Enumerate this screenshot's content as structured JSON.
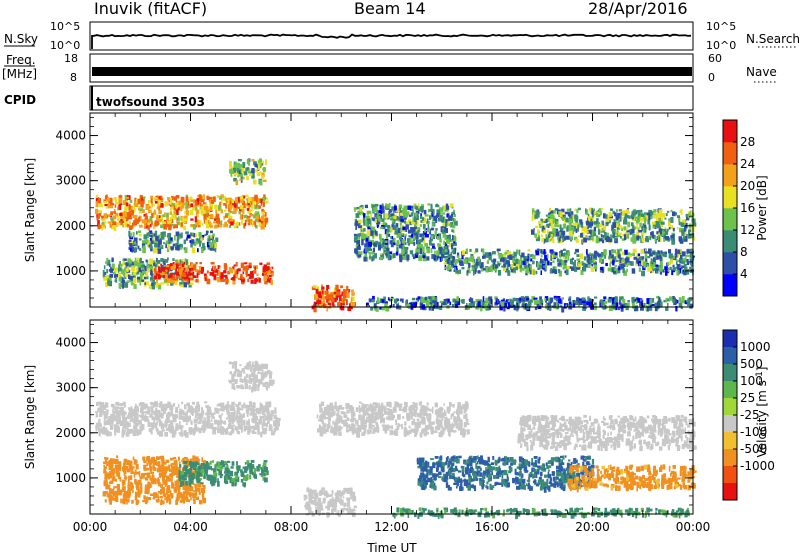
{
  "header": {
    "station": "Inuvik (fitACF)",
    "beam": "Beam 14",
    "date": "28/Apr/2016"
  },
  "strips": {
    "nsky_label": "N.Sky",
    "nsky_top": "10^5",
    "nsky_bottom": "10^0",
    "nsearch_label": "N.Search",
    "nsearch_top": "10^5",
    "nsearch_bottom": "10^0",
    "freq_label": "Freq.",
    "freq_unit": "[MHz]",
    "freq_top": "18",
    "freq_bottom": "8",
    "nave_label": "Nave",
    "nave_top": "60",
    "nave_bottom": "0",
    "cpid_label": "CPID",
    "cpid_value": "twofsound 3503"
  },
  "panels": {
    "power": {
      "ylabel": "Slant Range [km]",
      "cbar_label": "Power [dB]",
      "cbar_ticks": [
        "4",
        "8",
        "12",
        "16",
        "20",
        "24",
        "28"
      ],
      "cbar_colors": [
        "#0000ff",
        "#2d4fa8",
        "#3a8c74",
        "#6cc24a",
        "#e8e020",
        "#f3a01a",
        "#f06010",
        "#e81010"
      ]
    },
    "velocity": {
      "ylabel": "Slant Range [km]",
      "cbar_label": "Velocity [m s",
      "cbar_label_sup": "-1",
      "cbar_label_end": "]",
      "cbar_ticks": [
        "1000",
        "500",
        "100",
        "25",
        "-25",
        "-100",
        "-500",
        "-1000"
      ],
      "cbar_colors": [
        "#1a2fb0",
        "#2d5fa8",
        "#3a8c74",
        "#5cb84a",
        "#a0d83a",
        "#c8c8c8",
        "#f0c030",
        "#f09020",
        "#f05010",
        "#e81010"
      ]
    }
  },
  "chart_data": [
    {
      "type": "heatmap",
      "panel": "Power",
      "x_ticks": [
        "00:00",
        "04:00",
        "08:00",
        "12:00",
        "16:00",
        "20:00",
        "00:00"
      ],
      "y_ticks": [
        1000,
        2000,
        3000,
        4000
      ],
      "ylim": [
        200,
        4500
      ],
      "xlim_hours": [
        0,
        24
      ],
      "ylabel": "Slant Range [km]",
      "colorbar": "Power [dB]",
      "colorbar_range": [
        0,
        30
      ],
      "regions": [
        {
          "t": [
            0.2,
            7.0
          ],
          "r": [
            2000,
            2700
          ],
          "level": 22
        },
        {
          "t": [
            0.5,
            4.0
          ],
          "r": [
            700,
            1300
          ],
          "level": 12
        },
        {
          "t": [
            2.5,
            7.2
          ],
          "r": [
            800,
            1200
          ],
          "level": 28
        },
        {
          "t": [
            1.5,
            5.0
          ],
          "r": [
            1500,
            1900
          ],
          "level": 10
        },
        {
          "t": [
            5.5,
            7.0
          ],
          "r": [
            3000,
            3500
          ],
          "level": 14
        },
        {
          "t": [
            8.8,
            10.5
          ],
          "r": [
            200,
            700
          ],
          "level": 26
        },
        {
          "t": [
            10.5,
            14.5
          ],
          "r": [
            1300,
            2500
          ],
          "level": 10
        },
        {
          "t": [
            14.0,
            24.0
          ],
          "r": [
            1000,
            1500
          ],
          "level": 10
        },
        {
          "t": [
            17.5,
            24.0
          ],
          "r": [
            1700,
            2400
          ],
          "level": 12
        },
        {
          "t": [
            11.0,
            24.0
          ],
          "r": [
            200,
            450
          ],
          "level": 8
        }
      ]
    },
    {
      "type": "heatmap",
      "panel": "Velocity",
      "x_ticks": [
        "00:00",
        "04:00",
        "08:00",
        "12:00",
        "16:00",
        "20:00",
        "00:00"
      ],
      "y_ticks": [
        1000,
        2000,
        3000,
        4000
      ],
      "ylim": [
        200,
        4500
      ],
      "xlim_hours": [
        0,
        24
      ],
      "xlabel": "Time UT",
      "ylabel": "Slant Range [km]",
      "colorbar": "Velocity [m s-1]",
      "colorbar_range": [
        -1000,
        1000
      ],
      "regions": [
        {
          "t": [
            0.2,
            7.5
          ],
          "r": [
            2000,
            2700
          ],
          "level": 0
        },
        {
          "t": [
            5.5,
            7.2
          ],
          "r": [
            3000,
            3600
          ],
          "level": 0
        },
        {
          "t": [
            0.5,
            4.5
          ],
          "r": [
            500,
            1500
          ],
          "level": -300
        },
        {
          "t": [
            3.5,
            7.0
          ],
          "r": [
            900,
            1400
          ],
          "level": 150
        },
        {
          "t": [
            8.5,
            10.5
          ],
          "r": [
            200,
            800
          ],
          "level": 0
        },
        {
          "t": [
            9.0,
            15.0
          ],
          "r": [
            2000,
            2700
          ],
          "level": 0
        },
        {
          "t": [
            13.0,
            20.0
          ],
          "r": [
            800,
            1500
          ],
          "level": 600
        },
        {
          "t": [
            19.0,
            24.0
          ],
          "r": [
            800,
            1300
          ],
          "level": -200
        },
        {
          "t": [
            17.0,
            24.0
          ],
          "r": [
            1700,
            2400
          ],
          "level": 0
        },
        {
          "t": [
            12.0,
            24.0
          ],
          "r": [
            200,
            350
          ],
          "level": 150
        }
      ]
    }
  ]
}
